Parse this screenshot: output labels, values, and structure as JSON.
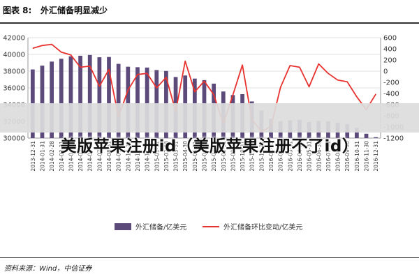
{
  "header": {
    "figure_label": "图表 8:",
    "title": "外汇储备明显减少"
  },
  "source": "资料来源：Wind，中信证券",
  "watermark": "美版苹果注册id（美版苹果注册不了id）",
  "colors": {
    "bar": "#5b4a7a",
    "line": "#e8322f",
    "grid": "#e2e2e2",
    "axis": "#999999",
    "banner": "#dcdcdc",
    "text": "#333333"
  },
  "chart_data": {
    "type": "bar+line",
    "categories": [
      "2013-12-31",
      "2014-01-31",
      "2014-02-28",
      "2014-03-31",
      "2014-04-30",
      "2014-05-31",
      "2014-06-30",
      "2014-07-31",
      "2014-08-31",
      "2014-09-30",
      "2014-10-31",
      "2014-11-30",
      "2014-12-31",
      "2015-01-31",
      "2015-02-28",
      "2015-03-31",
      "2015-04-30",
      "2015-05-31",
      "2015-06-30",
      "2015-07-31",
      "2015-08-31",
      "2015-09-30",
      "2015-10-31",
      "2015-11-30",
      "2015-12-31",
      "2016-01-31",
      "2016-02-29",
      "2016-03-31",
      "2016-04-30",
      "2016-05-31",
      "2016-06-30",
      "2016-07-31",
      "2016-08-31",
      "2016-09-30",
      "2016-10-31",
      "2016-11-30",
      "2016-12-31"
    ],
    "series": [
      {
        "name": "外汇储备/亿美元",
        "kind": "bar",
        "axis": "left",
        "values": [
          38200,
          38660,
          39140,
          39480,
          39770,
          39840,
          39930,
          39660,
          39690,
          38870,
          38530,
          38470,
          38430,
          38130,
          38020,
          37300,
          37480,
          37110,
          36930,
          36510,
          35570,
          35140,
          35250,
          34380,
          33300,
          32310,
          32020,
          32130,
          32200,
          31920,
          32050,
          32010,
          31850,
          31660,
          31210,
          30520,
          30110
        ]
      },
      {
        "name": "外汇储备环比变动/亿美元",
        "kind": "line",
        "axis": "right",
        "values": [
          410,
          460,
          480,
          340,
          290,
          70,
          90,
          -270,
          30,
          -820,
          -340,
          -60,
          -40,
          -300,
          -110,
          -720,
          180,
          -370,
          -180,
          -420,
          -940,
          -430,
          110,
          -870,
          -1080,
          -995,
          -290,
          100,
          70,
          -280,
          130,
          -40,
          -160,
          -190,
          -460,
          -690,
          -410
        ]
      }
    ],
    "y_left": {
      "min": 30000,
      "max": 42000,
      "ticks": [
        30000,
        32000,
        34000,
        36000,
        38000,
        40000,
        42000
      ]
    },
    "y_right": {
      "min": -1200,
      "max": 600,
      "ticks": [
        600,
        400,
        200,
        0,
        -200,
        -400,
        -600,
        -800,
        -1000,
        -1200
      ]
    },
    "legend": [
      "外汇储备/亿美元",
      "外汇储备环比变动/亿美元"
    ],
    "legend_position": "bottom",
    "grid": true
  }
}
